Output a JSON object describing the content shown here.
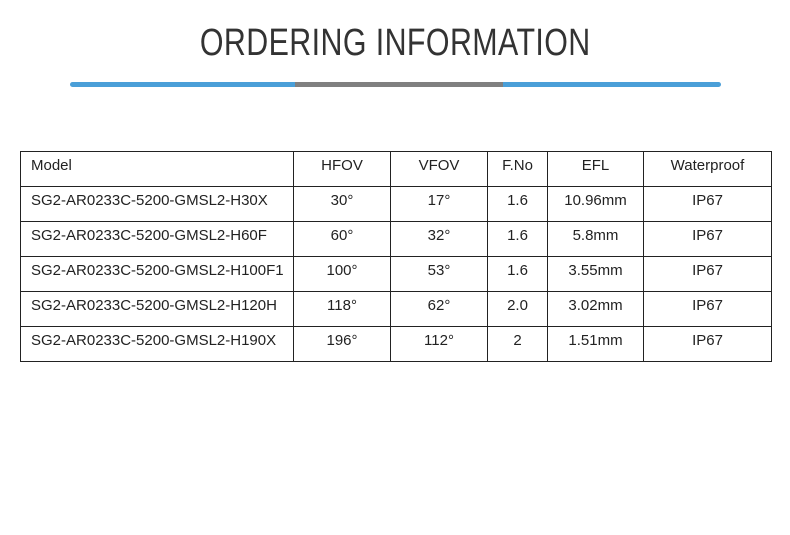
{
  "title": "ORDERING INFORMATION",
  "colors": {
    "accent": "#4a9fd8",
    "divider_gray": "#808080",
    "text": "#333333",
    "border": "#222222"
  },
  "table": {
    "headers": [
      "Model",
      "HFOV",
      "VFOV",
      "F.No",
      "EFL",
      "Waterproof"
    ],
    "rows": [
      [
        "SG2-AR0233C-5200-GMSL2-H30X",
        "30°",
        "17°",
        "1.6",
        "10.96mm",
        "IP67"
      ],
      [
        "SG2-AR0233C-5200-GMSL2-H60F",
        "60°",
        "32°",
        "1.6",
        "5.8mm",
        "IP67"
      ],
      [
        "SG2-AR0233C-5200-GMSL2-H100F1",
        "100°",
        "53°",
        "1.6",
        "3.55mm",
        "IP67"
      ],
      [
        "SG2-AR0233C-5200-GMSL2-H120H",
        "118°",
        "62°",
        "2.0",
        "3.02mm",
        "IP67"
      ],
      [
        "SG2-AR0233C-5200-GMSL2-H190X",
        "196°",
        "112°",
        "2",
        "1.51mm",
        "IP67"
      ]
    ]
  }
}
